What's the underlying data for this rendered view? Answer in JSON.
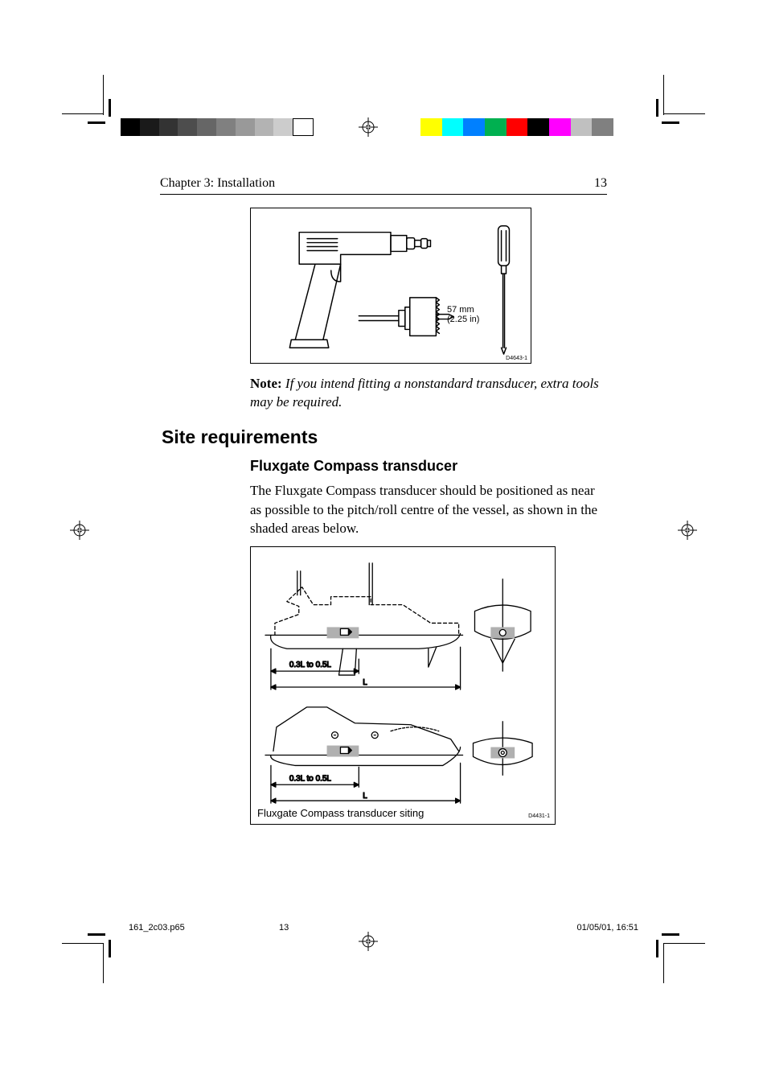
{
  "header": {
    "chapter": "Chapter 3: Installation",
    "page_number": "13"
  },
  "figure1": {
    "dim_mm": "57 mm",
    "dim_in": "(2.25 in)",
    "id": "D4643-1",
    "stroke_color": "#000000",
    "stroke_width": 1.5,
    "label_fontsize": 11
  },
  "note": {
    "label": "Note:",
    "text": " If you intend fitting a nonstandard transducer, extra tools may be required."
  },
  "h2": "Site requirements",
  "h3": "Fluxgate Compass transducer",
  "paragraph": "The Fluxgate Compass transducer should be positioned as near as possible to the pitch/roll centre of the vessel, as shown in the shaded areas below.",
  "figure2": {
    "caption": "Fluxgate Compass transducer siting",
    "id": "D4431-1",
    "range_label": "0.3L to 0.5L",
    "full_label": "L",
    "stroke_color": "#000000",
    "stroke_width": 1.5,
    "shaded_fill": "#b0b0b0",
    "label_fontsize": 10
  },
  "calibration": {
    "gray": [
      "#000000",
      "#1a1a1a",
      "#333333",
      "#4d4d4d",
      "#666666",
      "#808080",
      "#999999",
      "#b3b3b3",
      "#cccccc",
      "#ffffff"
    ],
    "color": [
      "#ffff00",
      "#00ffff",
      "#0080ff",
      "#00b050",
      "#ff0000",
      "#000000",
      "#ff00ff",
      "#c0c0c0",
      "#808080"
    ]
  },
  "footer": {
    "file": "161_2c03.p65",
    "page": "13",
    "datetime": "01/05/01, 16:51"
  },
  "typography": {
    "body_font": "Times New Roman",
    "heading_font": "Arial",
    "body_size": 17,
    "h2_size": 23,
    "h3_size": 18
  }
}
